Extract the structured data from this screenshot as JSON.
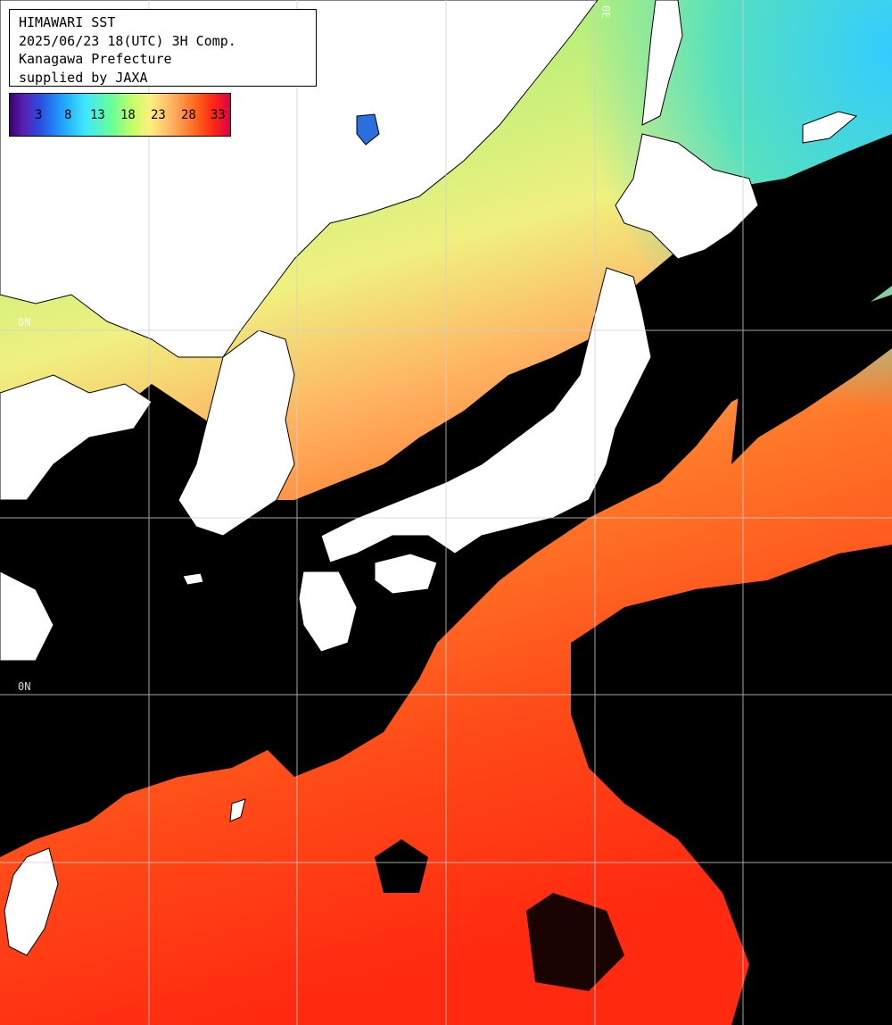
{
  "header": {
    "line1": "HIMAWARI SST",
    "line2": "2025/06/23 18(UTC) 3H Comp.",
    "line3": "Kanagawa Prefecture",
    "line4": "supplied by JAXA"
  },
  "color_scale": {
    "ticks": [
      "3",
      "8",
      "13",
      "18",
      "23",
      "28",
      "33"
    ],
    "unit": ""
  },
  "grid_labels": {
    "lat_a": "0N",
    "lat_b": "0N",
    "lon_a": "0E"
  },
  "colors": {
    "land": "#ffffff",
    "cloud": "#000000",
    "cold_sea": "#33ccff",
    "cool_sea": "#7cf07c",
    "mild_sea": "#f0f080",
    "warm_sea": "#ff8a30",
    "hot_sea": "#ff3a10",
    "grid": "#d0d0d0"
  }
}
